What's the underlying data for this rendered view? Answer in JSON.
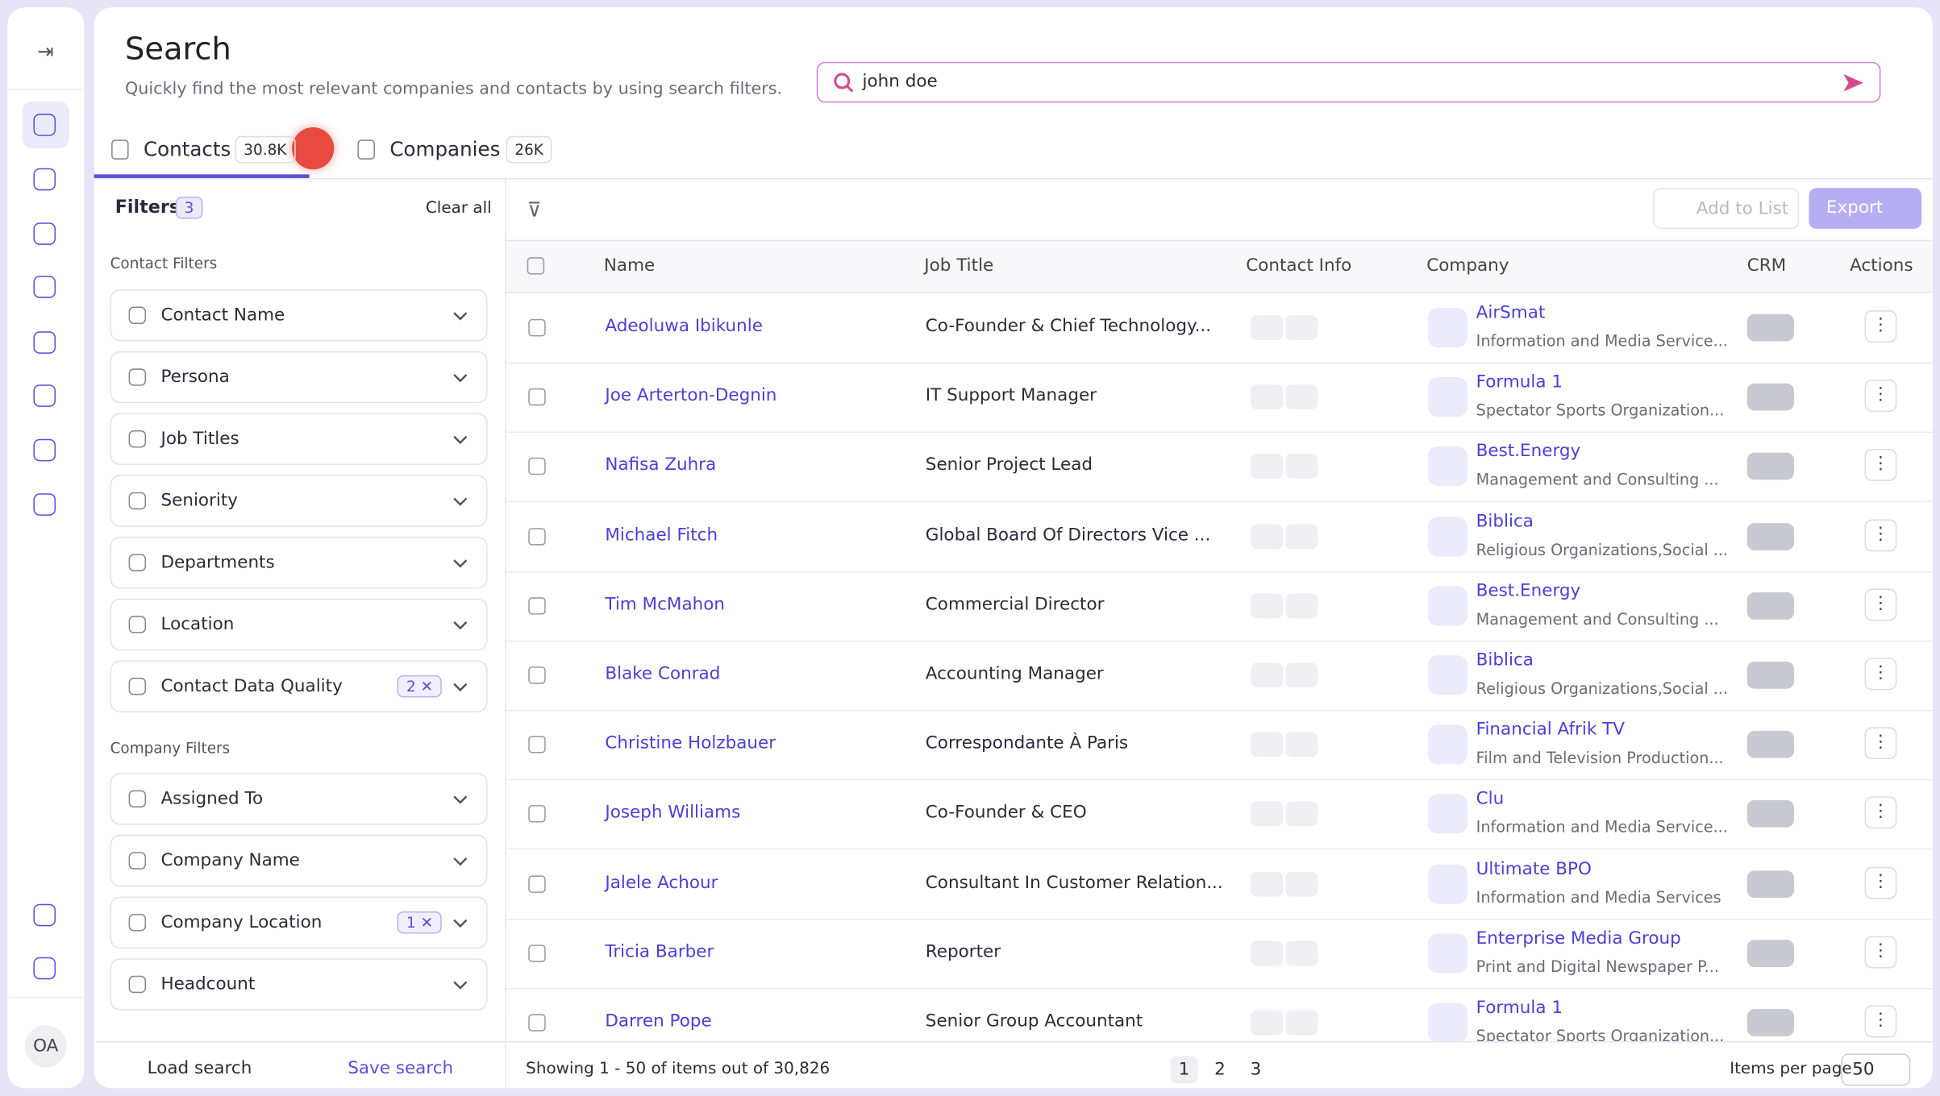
{
  "sidebar": {
    "avatar": "OA"
  },
  "header": {
    "title": "Search",
    "subtitle": "Quickly find the most relevant companies and contacts by using search filters.",
    "query": "john doe"
  },
  "tabs": [
    {
      "label": "Contacts",
      "count": "30.8K"
    },
    {
      "label": "Companies",
      "count": "26K"
    }
  ],
  "filters": {
    "title": "Filters",
    "count": "3",
    "clear": "Clear all",
    "contact_heading": "Contact Filters",
    "contact": [
      {
        "label": "Contact Name"
      },
      {
        "label": "Persona"
      },
      {
        "label": "Job Titles"
      },
      {
        "label": "Seniority"
      },
      {
        "label": "Departments"
      },
      {
        "label": "Location"
      },
      {
        "label": "Contact Data Quality",
        "selected": "2"
      }
    ],
    "company_heading": "Company Filters",
    "company": [
      {
        "label": "Assigned To"
      },
      {
        "label": "Company Name"
      },
      {
        "label": "Company Location",
        "selected": "1"
      },
      {
        "label": "Headcount"
      }
    ],
    "load": "Load search",
    "save": "Save search"
  },
  "toolbar": {
    "add": "Add to List",
    "export": "Export"
  },
  "table": {
    "columns": [
      "Name",
      "Job Title",
      "Contact Info",
      "Company",
      "CRM",
      "Actions"
    ],
    "rows": [
      {
        "name": "Adeoluwa Ibikunle",
        "title": "Co-Founder & Chief Technology...",
        "company": "AirSmat",
        "industry": "Information and Media Service..."
      },
      {
        "name": "Joe Arterton-Degnin",
        "title": "IT Support Manager",
        "company": "Formula 1",
        "industry": "Spectator Sports Organization..."
      },
      {
        "name": "Nafisa Zuhra",
        "title": "Senior Project Lead",
        "company": "Best.Energy",
        "industry": "Management and Consulting ..."
      },
      {
        "name": "Michael Fitch",
        "title": "Global Board Of Directors Vice ...",
        "company": "Biblica",
        "industry": "Religious Organizations,Social ..."
      },
      {
        "name": "Tim McMahon",
        "title": "Commercial Director",
        "company": "Best.Energy",
        "industry": "Management and Consulting ..."
      },
      {
        "name": "Blake Conrad",
        "title": "Accounting Manager",
        "company": "Biblica",
        "industry": "Religious Organizations,Social ..."
      },
      {
        "name": "Christine Holzbauer",
        "title": "Correspondante À Paris",
        "company": "Financial Afrik TV",
        "industry": "Film and Television Production..."
      },
      {
        "name": "Joseph Williams",
        "title": "Co-Founder & CEO",
        "company": "Clu",
        "industry": "Information and Media Service..."
      },
      {
        "name": "Jalele Achour",
        "title": "Consultant In Customer Relation...",
        "company": "Ultimate BPO",
        "industry": "Information and Media Services"
      },
      {
        "name": "Tricia Barber",
        "title": "Reporter",
        "company": "Enterprise Media Group",
        "industry": "Print and Digital Newspaper P..."
      },
      {
        "name": "Darren Pope",
        "title": "Senior Group Accountant",
        "company": "Formula 1",
        "industry": "Spectator Sports Organization..."
      }
    ]
  },
  "pagination": {
    "summary": "Showing 1 - 50 of items out of 30,826",
    "pages": [
      "1",
      "2",
      "3"
    ],
    "per_page_label": "Items per page",
    "per_page": "50"
  }
}
